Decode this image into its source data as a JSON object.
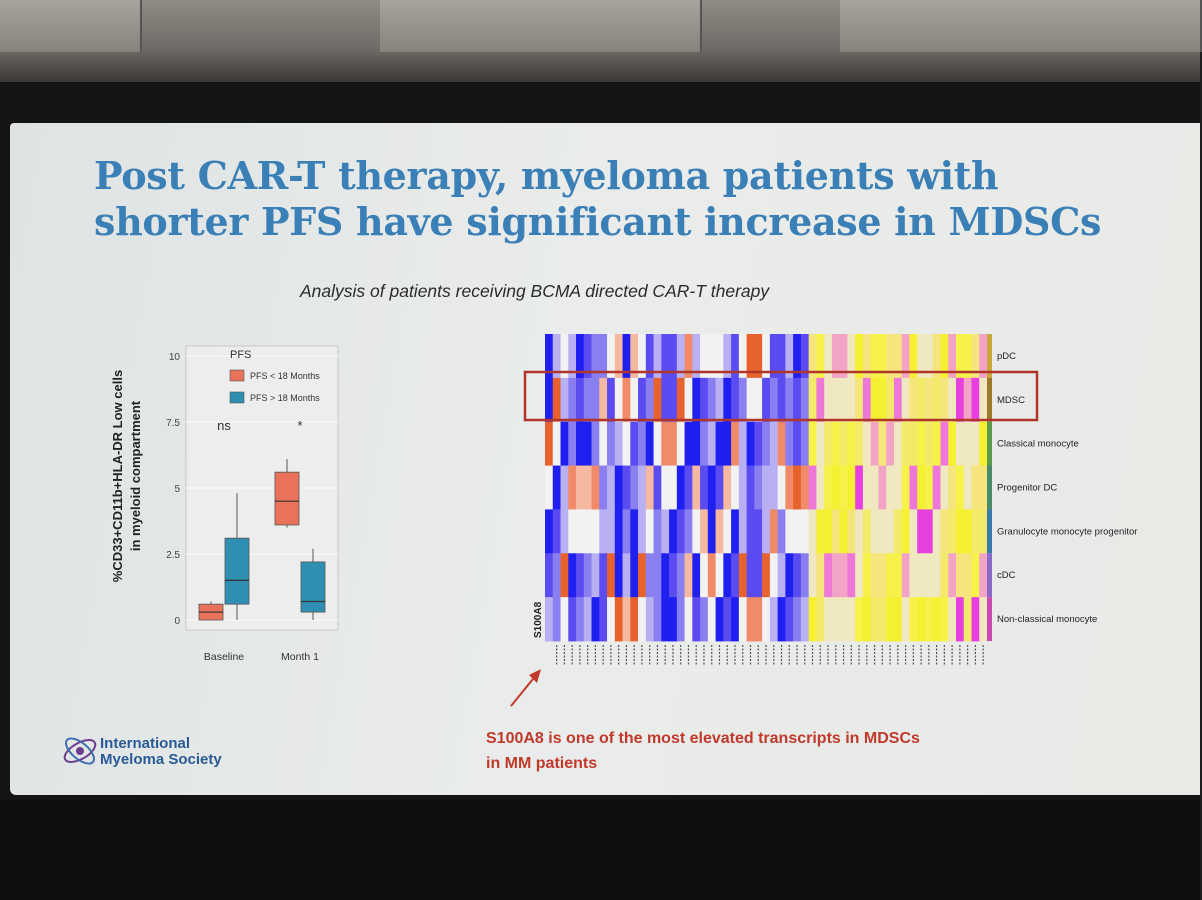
{
  "slide": {
    "title_line1": "Post CAR-T therapy, myeloma patients with",
    "title_line2": "shorter PFS have significant increase in MDSCs",
    "subtitle": "Analysis of patients receiving BCMA directed CAR-T therapy",
    "caption_line1": "S100A8 is one of the most elevated transcripts in MDSCs",
    "caption_line2": "in MM patients",
    "logo_line1": "International",
    "logo_line2": "Myeloma Society"
  },
  "colors": {
    "title": "#3b7fb7",
    "caption": "#c0392b",
    "pfs_short": "#e8735a",
    "pfs_long": "#2e8fb3",
    "heat_blue": "#1f1ff0",
    "heat_white": "#f2f2f2",
    "heat_yellow": "#f5f032",
    "heat_magenta": "#e840e0",
    "heat_orange": "#e8622e"
  },
  "chart_data": [
    {
      "type": "box",
      "ylabel_line1": "%CD33+CD11b+HLA-DR Low cells",
      "ylabel_line2": "in myeloid compartment",
      "ylim": [
        0,
        10
      ],
      "yticks": [
        0,
        2.5,
        5,
        7.5,
        10
      ],
      "ytick_labels": [
        "0",
        "2.5",
        "5",
        "7.5",
        "10"
      ],
      "categories": [
        "Baseline",
        "Month 1"
      ],
      "legend_title": "PFS",
      "legend_placement": "top-right",
      "series": [
        {
          "name": "PFS < 18 Months",
          "color": "#e8735a",
          "boxes": [
            {
              "category": "Baseline",
              "min": 0,
              "q1": 0,
              "median": 0.3,
              "q3": 0.6,
              "max": 0.7
            },
            {
              "category": "Month 1",
              "min": 3.5,
              "q1": 3.6,
              "median": 4.5,
              "q3": 5.6,
              "max": 6.1
            }
          ]
        },
        {
          "name": "PFS > 18 Months",
          "color": "#2e8fb3",
          "boxes": [
            {
              "category": "Baseline",
              "min": 0,
              "q1": 0.6,
              "median": 1.5,
              "q3": 3.1,
              "max": 4.8
            },
            {
              "category": "Month 1",
              "min": 0,
              "q1": 0.3,
              "median": 0.7,
              "q3": 2.2,
              "max": 2.7
            }
          ]
        }
      ],
      "annotations": [
        {
          "category": "Baseline",
          "text": "ns"
        },
        {
          "category": "Month 1",
          "text": "*"
        }
      ]
    },
    {
      "type": "heatmap",
      "rows": [
        "pDC",
        "MDSC",
        "Classical monocyte",
        "Progenitor DC",
        "Granulocyte monocyte progenitor",
        "cDC",
        "Non-classical monocyte"
      ],
      "highlighted_row": "MDSC",
      "highlighted_gene": "S100A8",
      "gene_count": 57,
      "highlight_color": "#c0392b",
      "colormap": [
        "#1f1ff0",
        "#f2f2f2",
        "#e8622e",
        "#f5f032",
        "#e840e0"
      ]
    }
  ]
}
